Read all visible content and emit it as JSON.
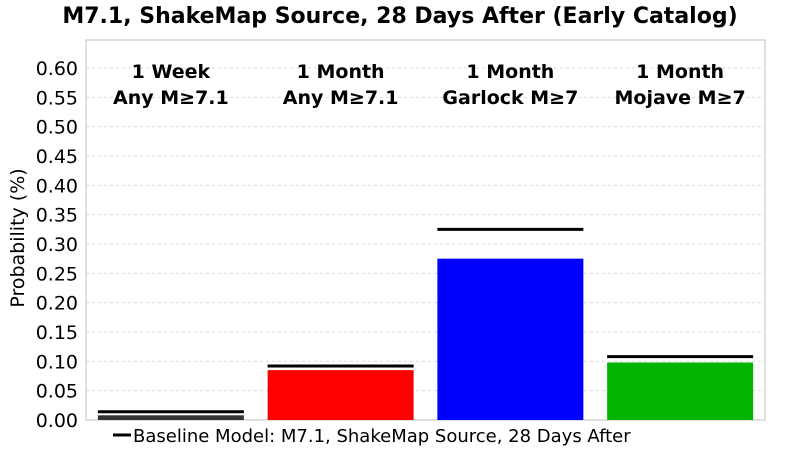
{
  "chart_data": {
    "type": "bar",
    "title": "M7.1, ShakeMap Source, 28 Days After (Early Catalog)",
    "ylabel": "Probability (%)",
    "ylim": [
      0,
      0.62
    ],
    "yticks": [
      "0.00",
      "0.05",
      "0.10",
      "0.15",
      "0.20",
      "0.25",
      "0.30",
      "0.35",
      "0.40",
      "0.45",
      "0.50",
      "0.55",
      "0.60"
    ],
    "grid": true,
    "categories": [
      [
        "1 Week",
        "Any M≥7.1"
      ],
      [
        "1 Month",
        "Any M≥7.1"
      ],
      [
        "1 Month",
        "Garlock M≥7"
      ],
      [
        "1 Month",
        "Mojave M≥7"
      ]
    ],
    "values": [
      0.008,
      0.085,
      0.275,
      0.098
    ],
    "colors": [
      "#333333",
      "#ff0000",
      "#0000ff",
      "#00b400"
    ],
    "baseline": {
      "name": "Baseline Model: M7.1, ShakeMap Source, 28 Days After",
      "values": [
        0.014,
        0.092,
        0.325,
        0.108
      ],
      "color": "#000000"
    },
    "legend_position": "bottom-left"
  }
}
